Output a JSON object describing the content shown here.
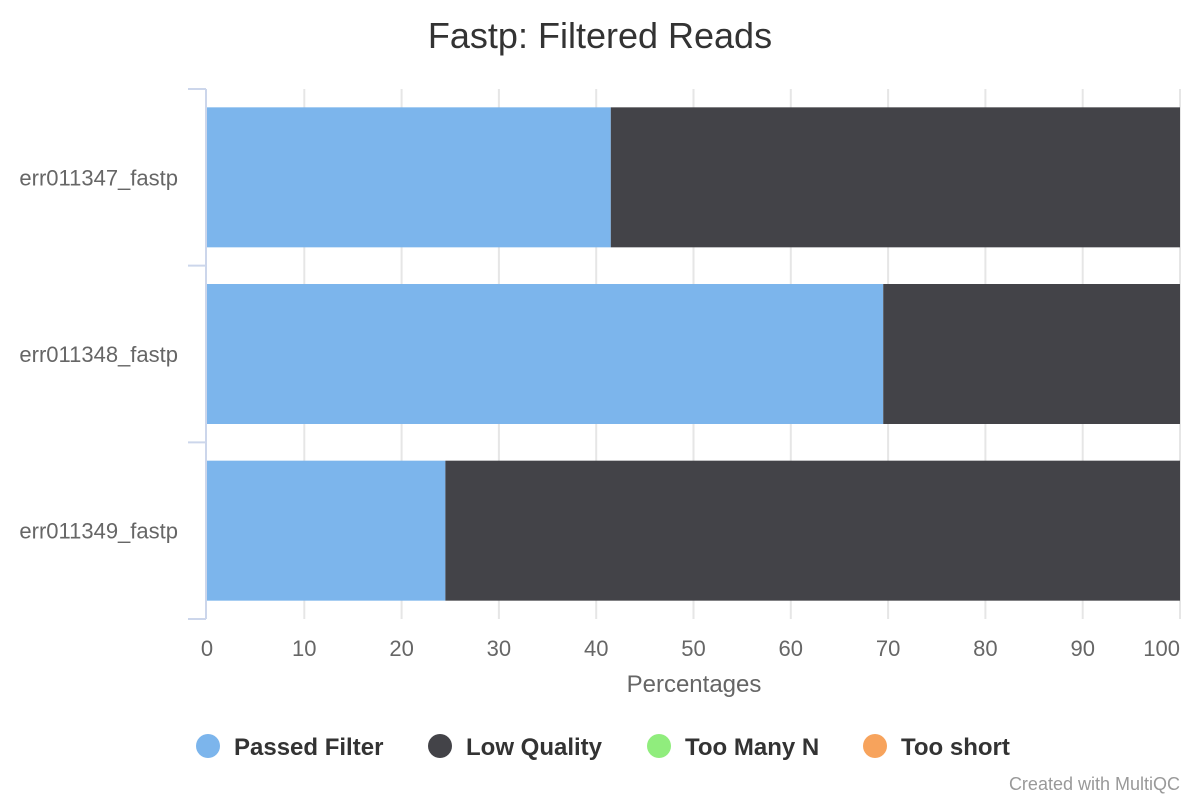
{
  "chart_data": {
    "type": "bar",
    "orientation": "horizontal",
    "stacked": true,
    "title": "Fastp: Filtered Reads",
    "xlabel": "Percentages",
    "ylabel": "",
    "xlim": [
      0,
      100
    ],
    "xticks": [
      "0",
      "10",
      "20",
      "30",
      "40",
      "50",
      "60",
      "70",
      "80",
      "90",
      "100"
    ],
    "categories": [
      "err011347_fastp",
      "err011348_fastp",
      "err011349_fastp"
    ],
    "series": [
      {
        "name": "Passed Filter",
        "color": "#7cb5ec",
        "values": [
          41.5,
          69.5,
          24.5
        ]
      },
      {
        "name": "Low Quality",
        "color": "#434348",
        "values": [
          58.5,
          30.5,
          75.5
        ]
      },
      {
        "name": "Too Many N",
        "color": "#90ed7d",
        "values": [
          0,
          0,
          0
        ]
      },
      {
        "name": "Too short",
        "color": "#f7a35c",
        "values": [
          0,
          0,
          0
        ]
      }
    ],
    "grid": true,
    "legend_position": "bottom"
  },
  "credit": "Created with MultiQC"
}
